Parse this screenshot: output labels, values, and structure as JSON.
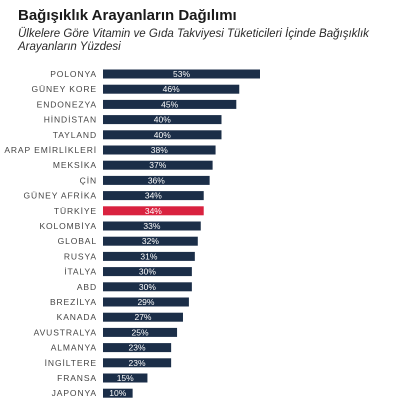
{
  "chart_data": {
    "type": "bar",
    "orientation": "horizontal",
    "title": "Bağışıklık Arayanların Dağılımı",
    "subtitle": "Ülkelere Göre Vitamin ve Gıda Takviyesi Tüketicileri İçinde Bağışıklık Arayanların Yüzdesi",
    "xlim": [
      0,
      53
    ],
    "grid": false,
    "legend": "none",
    "value_suffix": "%",
    "categories": [
      "POLONYA",
      "GÜNEY KORE",
      "ENDONEZYA",
      "HİNDİSTAN",
      "TAYLAND",
      "ARAP EMİRLİKLERİ",
      "MEKSİKA",
      "ÇİN",
      "GÜNEY AFRİKA",
      "TÜRKİYE",
      "KOLOMBİYA",
      "GLOBAL",
      "RUSYA",
      "İTALYA",
      "ABD",
      "BREZİLYA",
      "KANADA",
      "AVUSTRALYA",
      "ALMANYA",
      "İNGİLTERE",
      "FRANSA",
      "JAPONYA"
    ],
    "values": [
      53,
      46,
      45,
      40,
      40,
      38,
      37,
      36,
      34,
      34,
      33,
      32,
      31,
      30,
      30,
      29,
      27,
      25,
      23,
      23,
      15,
      10
    ],
    "value_labels": [
      "53%",
      "46%",
      "45%",
      "40%",
      "40%",
      "38%",
      "37%",
      "36%",
      "34%",
      "34%",
      "33%",
      "32%",
      "31%",
      "30%",
      "30%",
      "29%",
      "27%",
      "25%",
      "23%",
      "23%",
      "15%",
      "10%"
    ],
    "highlight": "TÜRKİYE",
    "colors": {
      "bar": "#1b2e48",
      "highlight": "#d9223f"
    }
  }
}
